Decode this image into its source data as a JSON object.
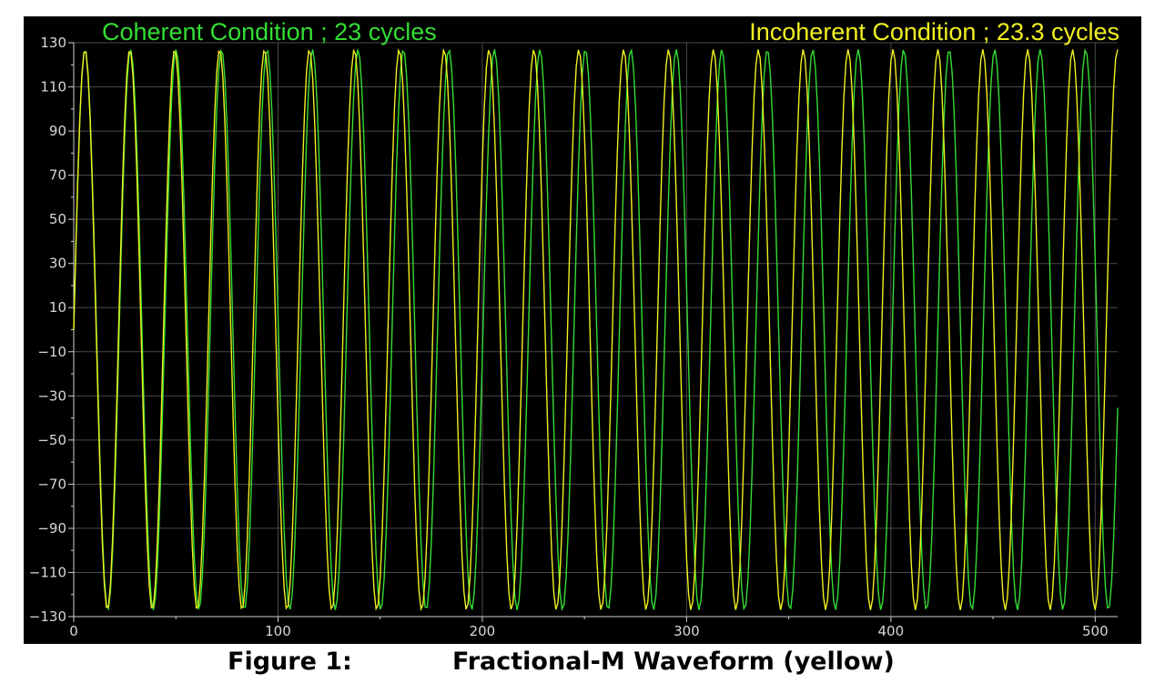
{
  "chart_data": {
    "type": "line",
    "xlim": [
      0,
      511
    ],
    "ylim": [
      -130,
      130
    ],
    "yticks": [
      130,
      110,
      90,
      70,
      50,
      30,
      10,
      -10,
      -30,
      -50,
      -70,
      -90,
      -110,
      -130
    ],
    "xticks": [
      0,
      100,
      200,
      300,
      400,
      500
    ],
    "grid": true,
    "num_samples": 512,
    "series": [
      {
        "name": "Coherent Condition ; 23 cycles",
        "color": "#33dd33",
        "cycles": 23,
        "amplitude": 127,
        "sample_range": [
          0,
          511
        ]
      },
      {
        "name": "Incoherent Condition ; 23.3 cycles",
        "color": "#f0f020",
        "cycles": 23.3,
        "amplitude": 127,
        "sample_range": [
          0,
          511
        ]
      }
    ]
  },
  "caption": {
    "figure_label": "Figure 1:",
    "title": "Fractional-M Waveform (yellow)"
  }
}
